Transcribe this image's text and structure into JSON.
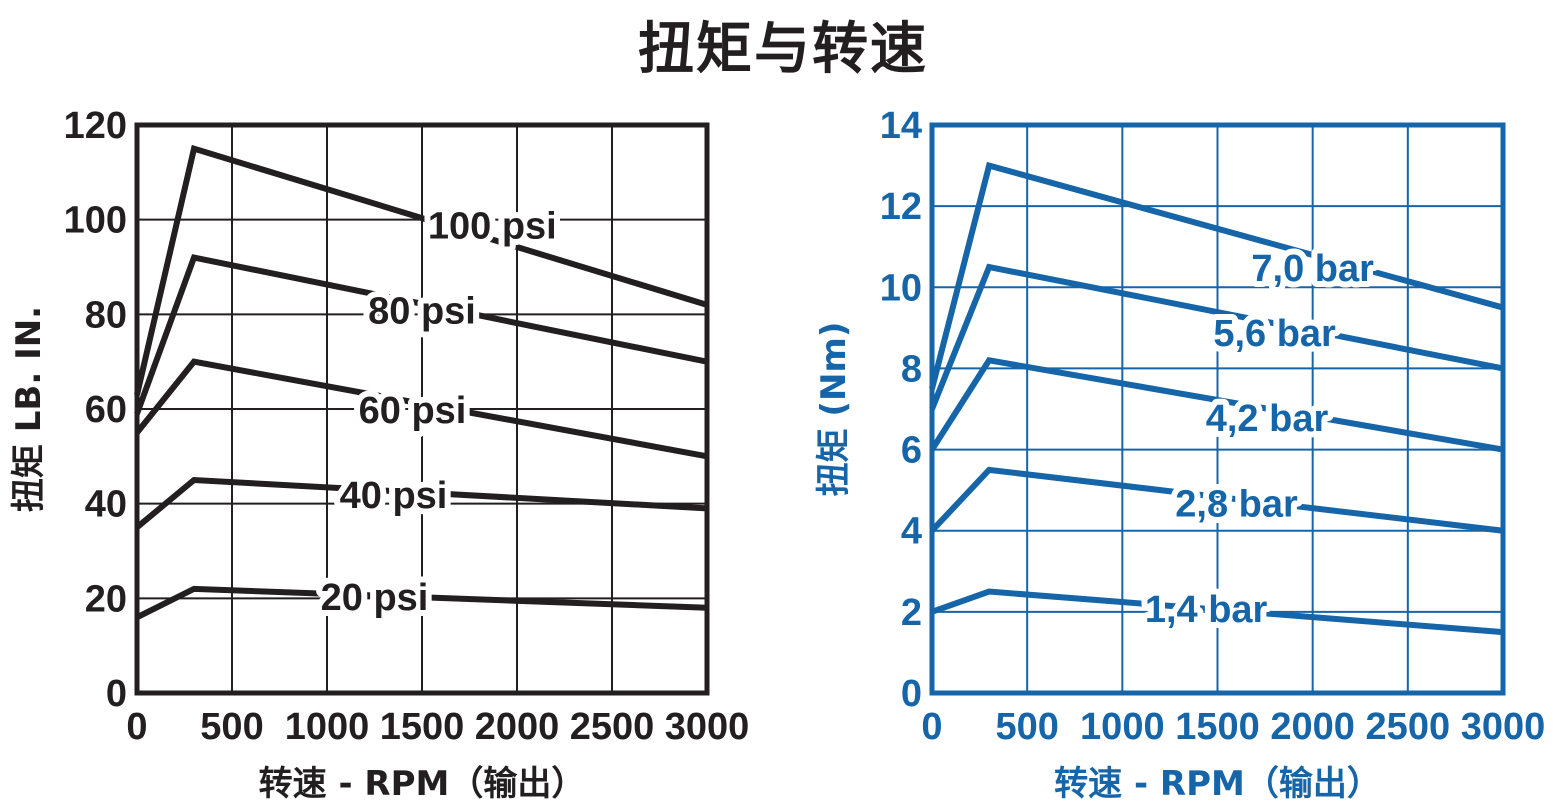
{
  "title": "扭矩与转速",
  "chart_data": [
    {
      "type": "line",
      "color": "#231f20",
      "xlabel": "转速 - RPM（输出）",
      "ylabel": "扭矩 LB. IN.",
      "xlim": [
        0,
        3000
      ],
      "ylim": [
        0,
        120
      ],
      "xticks": [
        "0",
        "500",
        "1000",
        "1500",
        "2000",
        "2500",
        "3000"
      ],
      "yticks": [
        "0",
        "20",
        "40",
        "60",
        "80",
        "100",
        "120"
      ],
      "grid": true,
      "series": [
        {
          "name": "100 psi",
          "x": [
            0,
            300,
            3000
          ],
          "y": [
            63,
            115,
            82
          ]
        },
        {
          "name": "80 psi",
          "x": [
            0,
            300,
            3000
          ],
          "y": [
            59,
            92,
            70
          ]
        },
        {
          "name": "60 psi",
          "x": [
            0,
            300,
            3000
          ],
          "y": [
            55,
            70,
            50
          ]
        },
        {
          "name": "40 psi",
          "x": [
            0,
            300,
            3000
          ],
          "y": [
            35,
            45,
            39
          ]
        },
        {
          "name": "20 psi",
          "x": [
            0,
            300,
            3000
          ],
          "y": [
            16,
            22,
            18
          ]
        }
      ]
    },
    {
      "type": "line",
      "color": "#1565a8",
      "xlabel": "转速 - RPM（输出）",
      "ylabel": "扭矩 (Nm)",
      "xlim": [
        0,
        3000
      ],
      "ylim": [
        0,
        14
      ],
      "xticks": [
        "0",
        "500",
        "1000",
        "1500",
        "2000",
        "2500",
        "3000"
      ],
      "yticks": [
        "0",
        "2",
        "4",
        "6",
        "8",
        "10",
        "12",
        "14"
      ],
      "grid": true,
      "series": [
        {
          "name": "7,0 bar",
          "x": [
            0,
            300,
            3000
          ],
          "y": [
            7.5,
            13.0,
            9.5
          ]
        },
        {
          "name": "5,6 bar",
          "x": [
            0,
            300,
            3000
          ],
          "y": [
            7.0,
            10.5,
            8.0
          ]
        },
        {
          "name": "4,2 bar",
          "x": [
            0,
            300,
            3000
          ],
          "y": [
            6.0,
            8.2,
            6.0
          ]
        },
        {
          "name": "2,8 bar",
          "x": [
            0,
            300,
            3000
          ],
          "y": [
            4.0,
            5.5,
            4.0
          ]
        },
        {
          "name": "1,4 bar",
          "x": [
            0,
            300,
            3000
          ],
          "y": [
            2.0,
            2.5,
            1.5
          ]
        }
      ]
    }
  ]
}
